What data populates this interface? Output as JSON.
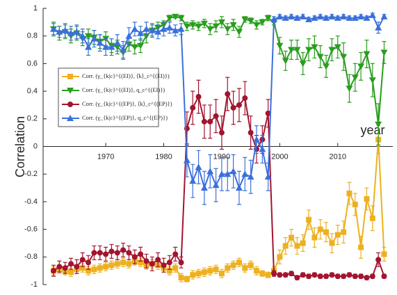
{
  "chart_data": {
    "type": "line",
    "x_label": "year",
    "y_label": "Correlation",
    "x": [
      1961,
      1962,
      1963,
      1964,
      1965,
      1966,
      1967,
      1968,
      1969,
      1970,
      1971,
      1972,
      1973,
      1974,
      1975,
      1976,
      1977,
      1978,
      1979,
      1980,
      1981,
      1982,
      1983,
      1984,
      1985,
      1986,
      1987,
      1988,
      1989,
      1990,
      1991,
      1992,
      1993,
      1994,
      1995,
      1996,
      1997,
      1998,
      1999,
      2000,
      2001,
      2002,
      2003,
      2004,
      2005,
      2006,
      2007,
      2008,
      2009,
      2010,
      2011,
      2012,
      2013,
      2014,
      2015,
      2016,
      2017,
      2018
    ],
    "xlim": [
      1959.2,
      2019.5
    ],
    "xticks": [
      1970,
      1980,
      1990,
      2000,
      2010
    ],
    "ylim": [
      -1,
      1
    ],
    "yticks": [
      -1,
      -0.8,
      -0.6,
      -0.4,
      -0.2,
      0,
      0.2,
      0.4,
      0.6,
      0.8,
      1
    ],
    "legend": "upper-left",
    "series": [
      {
        "name": "Corr. (γ_{k|c}^{(EI)}, ⟨k⟩_c^{(EI)})",
        "color": "#edb120",
        "marker": "square",
        "values": [
          -0.9,
          -0.89,
          -0.9,
          -0.91,
          -0.89,
          -0.88,
          -0.9,
          -0.89,
          -0.88,
          -0.87,
          -0.86,
          -0.85,
          -0.84,
          -0.85,
          -0.83,
          -0.84,
          -0.86,
          -0.85,
          -0.86,
          -0.88,
          -0.9,
          -0.88,
          -0.95,
          -0.96,
          -0.93,
          -0.92,
          -0.91,
          -0.9,
          -0.89,
          -0.92,
          -0.88,
          -0.86,
          -0.84,
          -0.88,
          -0.86,
          -0.9,
          -0.92,
          -0.93,
          -0.9,
          -0.8,
          -0.72,
          -0.66,
          -0.72,
          -0.7,
          -0.53,
          -0.66,
          -0.6,
          -0.62,
          -0.7,
          -0.64,
          -0.62,
          -0.34,
          -0.42,
          -0.73,
          -0.38,
          -0.52,
          0.05,
          -0.78
        ],
        "errors": [
          0.03,
          0.03,
          0.03,
          0.03,
          0.03,
          0.03,
          0.03,
          0.03,
          0.03,
          0.03,
          0.03,
          0.03,
          0.03,
          0.03,
          0.03,
          0.03,
          0.03,
          0.03,
          0.03,
          0.03,
          0.03,
          0.03,
          0.03,
          0.02,
          0.03,
          0.03,
          0.03,
          0.03,
          0.03,
          0.03,
          0.03,
          0.03,
          0.03,
          0.03,
          0.03,
          0.03,
          0.02,
          0.02,
          0.03,
          0.05,
          0.06,
          0.06,
          0.06,
          0.06,
          0.07,
          0.07,
          0.07,
          0.07,
          0.07,
          0.07,
          0.08,
          0.08,
          0.08,
          0.08,
          0.08,
          0.09,
          0.1,
          0.05
        ]
      },
      {
        "name": "Corr. (γ_{k|c}^{(EI)}, q_c^{(EI)})",
        "color": "#2a9d1f",
        "marker": "triangle-down",
        "values": [
          0.85,
          0.82,
          0.83,
          0.8,
          0.82,
          0.78,
          0.8,
          0.79,
          0.76,
          0.78,
          0.73,
          0.72,
          0.68,
          0.74,
          0.72,
          0.73,
          0.8,
          0.84,
          0.86,
          0.88,
          0.93,
          0.94,
          0.93,
          0.87,
          0.88,
          0.87,
          0.89,
          0.85,
          0.87,
          0.9,
          0.85,
          0.88,
          0.83,
          0.92,
          0.91,
          0.88,
          0.9,
          0.93,
          0.9,
          0.73,
          0.62,
          0.7,
          0.7,
          0.6,
          0.7,
          0.72,
          0.65,
          0.58,
          0.7,
          0.72,
          0.65,
          0.42,
          0.5,
          0.58,
          0.67,
          0.48,
          0.16,
          0.68
        ],
        "errors": [
          0.05,
          0.05,
          0.05,
          0.05,
          0.05,
          0.05,
          0.05,
          0.05,
          0.05,
          0.05,
          0.05,
          0.05,
          0.05,
          0.05,
          0.05,
          0.05,
          0.05,
          0.04,
          0.04,
          0.03,
          0.02,
          0.01,
          0.02,
          0.03,
          0.03,
          0.03,
          0.03,
          0.04,
          0.04,
          0.04,
          0.04,
          0.04,
          0.04,
          0.02,
          0.02,
          0.03,
          0.02,
          0.02,
          0.02,
          0.06,
          0.07,
          0.07,
          0.07,
          0.08,
          0.08,
          0.08,
          0.08,
          0.08,
          0.08,
          0.08,
          0.1,
          0.1,
          0.1,
          0.1,
          0.1,
          0.12,
          0.15,
          0.08
        ]
      },
      {
        "name": "Corr. (γ_{k|c}^{(EP)}, ⟨k⟩_c^{(EP)})",
        "color": "#a2142f",
        "marker": "circle",
        "values": [
          -0.9,
          -0.87,
          -0.88,
          -0.85,
          -0.87,
          -0.82,
          -0.84,
          -0.77,
          -0.77,
          -0.78,
          -0.76,
          -0.77,
          -0.75,
          -0.77,
          -0.8,
          -0.78,
          -0.83,
          -0.85,
          -0.82,
          -0.86,
          -0.84,
          -0.78,
          -0.84,
          0.13,
          0.28,
          0.36,
          0.18,
          0.18,
          0.22,
          0.1,
          0.38,
          0.28,
          0.3,
          0.35,
          0.1,
          -0.02,
          0.05,
          0.24,
          -0.92,
          -0.93,
          -0.93,
          -0.92,
          -0.95,
          -0.93,
          -0.94,
          -0.93,
          -0.94,
          -0.94,
          -0.93,
          -0.94,
          -0.94,
          -0.93,
          -0.94,
          -0.94,
          -0.95,
          -0.94,
          -0.82,
          -0.94
        ],
        "errors": [
          0.04,
          0.04,
          0.04,
          0.04,
          0.05,
          0.05,
          0.05,
          0.05,
          0.05,
          0.05,
          0.05,
          0.05,
          0.05,
          0.05,
          0.05,
          0.05,
          0.05,
          0.05,
          0.05,
          0.05,
          0.05,
          0.05,
          0.04,
          0.12,
          0.12,
          0.12,
          0.12,
          0.12,
          0.12,
          0.12,
          0.12,
          0.12,
          0.12,
          0.12,
          0.12,
          0.1,
          0.1,
          0.1,
          0.02,
          0.015,
          0.015,
          0.015,
          0.015,
          0.015,
          0.015,
          0.015,
          0.015,
          0.015,
          0.015,
          0.015,
          0.015,
          0.015,
          0.015,
          0.015,
          0.015,
          0.015,
          0.05,
          0.015
        ]
      },
      {
        "name": "Corr. (γ_{k|c}^{(EP)}, q_c^{(EP)})",
        "color": "#3a6fdc",
        "marker": "triangle-up",
        "values": [
          0.85,
          0.83,
          0.84,
          0.82,
          0.83,
          0.8,
          0.72,
          0.78,
          0.75,
          0.72,
          0.72,
          0.75,
          0.7,
          0.8,
          0.85,
          0.82,
          0.85,
          0.84,
          0.83,
          0.85,
          0.86,
          0.84,
          0.85,
          -0.1,
          -0.25,
          -0.15,
          -0.3,
          -0.18,
          -0.28,
          -0.2,
          -0.2,
          -0.18,
          -0.3,
          -0.2,
          -0.22,
          0.05,
          -0.02,
          -0.22,
          0.92,
          0.94,
          0.93,
          0.94,
          0.93,
          0.94,
          0.92,
          0.93,
          0.94,
          0.93,
          0.94,
          0.93,
          0.94,
          0.93,
          0.93,
          0.94,
          0.93,
          0.95,
          0.86,
          0.94
        ],
        "errors": [
          0.04,
          0.04,
          0.05,
          0.05,
          0.05,
          0.05,
          0.06,
          0.06,
          0.06,
          0.06,
          0.06,
          0.06,
          0.06,
          0.06,
          0.05,
          0.05,
          0.05,
          0.05,
          0.05,
          0.05,
          0.04,
          0.04,
          0.04,
          0.12,
          0.12,
          0.12,
          0.12,
          0.12,
          0.12,
          0.12,
          0.12,
          0.12,
          0.12,
          0.12,
          0.12,
          0.1,
          0.1,
          0.1,
          0.02,
          0.015,
          0.015,
          0.015,
          0.015,
          0.015,
          0.015,
          0.015,
          0.015,
          0.015,
          0.015,
          0.015,
          0.015,
          0.015,
          0.015,
          0.015,
          0.015,
          0.015,
          0.04,
          0.015
        ]
      }
    ]
  }
}
